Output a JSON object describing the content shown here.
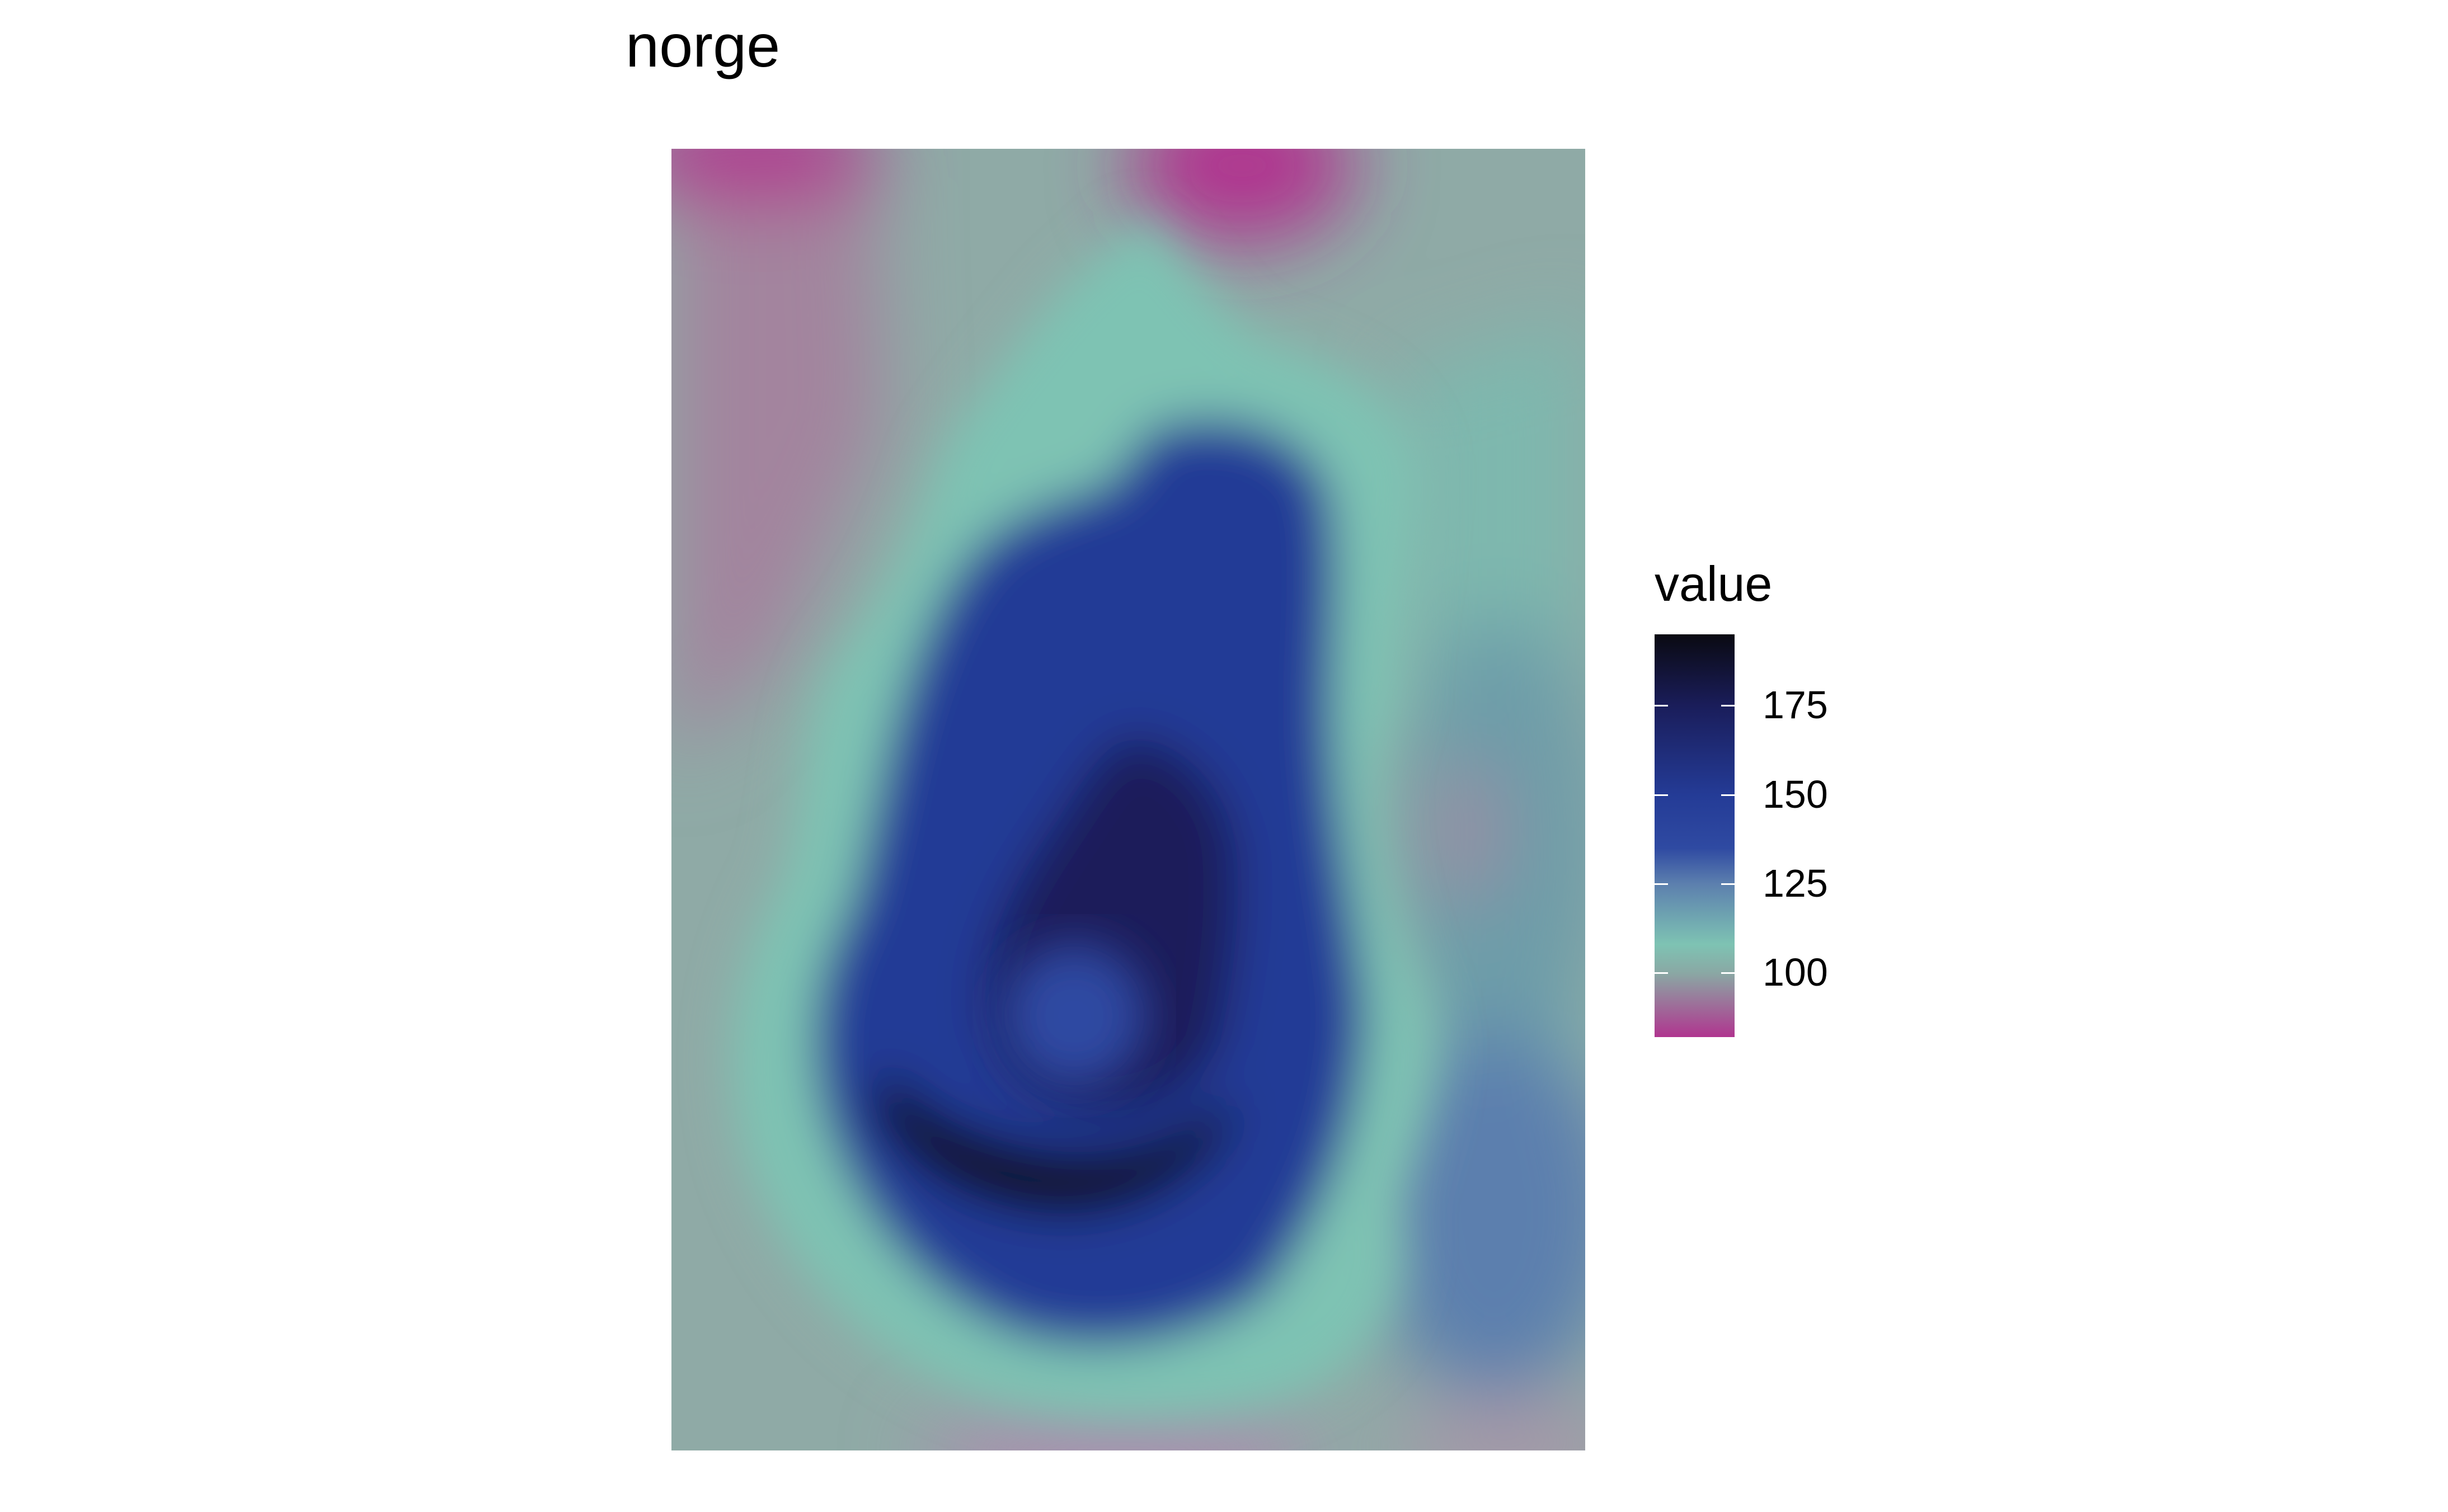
{
  "chart_data": {
    "type": "heatmap",
    "title": "norge",
    "legend": {
      "title": "value",
      "position": "right",
      "range": [
        82,
        195
      ],
      "breaks": [
        {
          "value": 100,
          "label": "100"
        },
        {
          "value": 125,
          "label": "125"
        },
        {
          "value": 150,
          "label": "150"
        },
        {
          "value": 175,
          "label": "175"
        }
      ]
    },
    "colors": {
      "82": "#b0358f",
      "100": "#8aa8a4",
      "108": "#7ec3b3",
      "125": "#5c7fae",
      "135": "#2f4aa2",
      "150": "#243b96",
      "175": "#1a1d5a",
      "195": "#0a0a12"
    },
    "grid": false,
    "axes": "none",
    "approximate_field": {
      "note_values": "approximate surface value levels read from the colour scale",
      "background": 100,
      "regions": [
        {
          "name": "north-west corner",
          "value": 88
        },
        {
          "name": "north-centre top edge",
          "value": 82
        },
        {
          "name": "north-east",
          "value": 102
        },
        {
          "name": "east",
          "value": 112
        },
        {
          "name": "coastal ring",
          "value": 108
        },
        {
          "name": "inner plateau",
          "value": 150
        },
        {
          "name": "central basin",
          "value": 170
        },
        {
          "name": "southern trough",
          "value": 192
        },
        {
          "name": "south-east",
          "value": 130
        },
        {
          "name": "east pocket",
          "value": 92
        },
        {
          "name": "south border",
          "value": 94
        }
      ]
    }
  }
}
